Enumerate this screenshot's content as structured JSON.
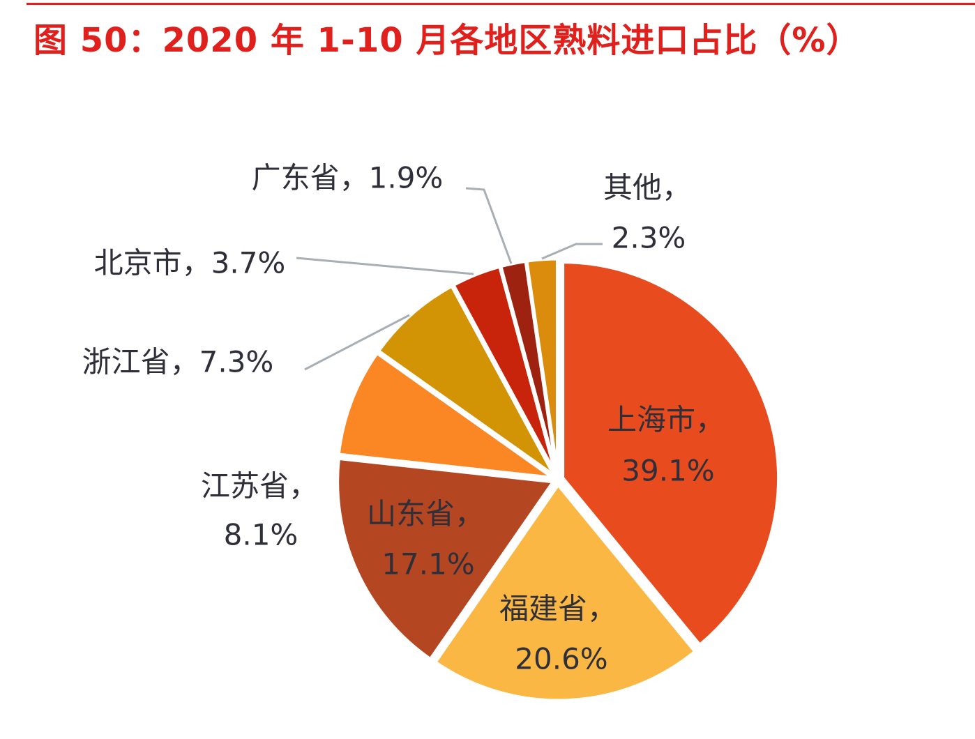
{
  "title": "图 50：2020 年 1-10 月各地区熟料进口占比（%）",
  "chart_data": {
    "type": "pie",
    "title": "图 50：2020 年 1-10 月各地区熟料进口占比（%）",
    "unit": "%",
    "slices": [
      {
        "name": "上海市",
        "value": 39.1,
        "label": "39.1%",
        "color": "#e84c1e"
      },
      {
        "name": "福建省",
        "value": 20.6,
        "label": "20.6%",
        "color": "#fbb744"
      },
      {
        "name": "山东省",
        "value": 17.1,
        "label": "17.1%",
        "color": "#b54622"
      },
      {
        "name": "江苏省",
        "value": 8.1,
        "label": "8.1%",
        "color": "#fb8624"
      },
      {
        "name": "浙江省",
        "value": 7.3,
        "label": "7.3%",
        "color": "#d29404"
      },
      {
        "name": "北京市",
        "value": 3.7,
        "label": "3.7%",
        "color": "#c8240c"
      },
      {
        "name": "广东省",
        "value": 1.9,
        "label": "1.9%",
        "color": "#9e2210"
      },
      {
        "name": "其他",
        "value": 2.3,
        "label": "2.3%",
        "color": "#dc8c0c"
      }
    ]
  }
}
